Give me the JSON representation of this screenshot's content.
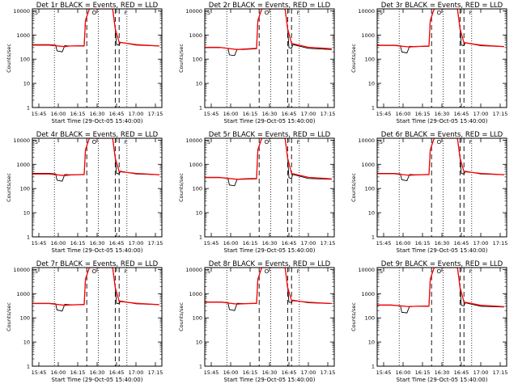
{
  "figure": {
    "start_time_label": "Start Time (29-Oct-05 15:40:00)",
    "legend_symbols": [
      "S",
      "A",
      "S",
      "O",
      "S",
      "E",
      "F",
      "F"
    ]
  },
  "colors": {
    "events": "#000000",
    "lld": "#ff0000",
    "background": "#ffffff"
  },
  "chart_data": [
    {
      "type": "line",
      "title": "Det 1r BLACK = Events, RED = LLD",
      "ylabel": "Counts/sec",
      "xlabel": "Start Time (29-Oct-05 15:40:00)",
      "yscale": "log",
      "ylim": [
        1,
        12000
      ],
      "xlim": [
        "15:40",
        "17:20"
      ],
      "x_tick_labels": [
        "15:45",
        "16:00",
        "16:15",
        "16:30",
        "16:45",
        "17:00",
        "17:15"
      ],
      "y_tick_labels": [
        "1",
        "10",
        "100",
        "1000",
        "10000"
      ],
      "dotted_lines": [
        "15:57",
        "16:31",
        "16:53"
      ],
      "dashed_lines": [
        "16:22",
        "16:44",
        "16:47"
      ],
      "series": [
        {
          "name": "BLACK = Events",
          "x": [
            "15:40",
            "15:51",
            "15:53",
            "15:58",
            "15:59",
            "16:03",
            "16:05",
            "16:09",
            "16:20",
            "16:21",
            "16:24",
            "16:42",
            "16:44",
            "16:45",
            "16:47",
            "16:48",
            "17:00",
            "17:18"
          ],
          "y": [
            400,
            400,
            400,
            380,
            220,
            200,
            360,
            350,
            350,
            4000,
            12000,
            12000,
            1800,
            400,
            380,
            500,
            380,
            350
          ]
        },
        {
          "name": "RED = LLD",
          "x": [
            "15:40",
            "15:51",
            "15:53",
            "16:05",
            "16:09",
            "16:20",
            "16:21",
            "16:24",
            "16:42",
            "16:44",
            "16:47",
            "17:00",
            "17:18"
          ],
          "y": [
            380,
            380,
            380,
            330,
            350,
            360,
            4000,
            12000,
            12000,
            1800,
            500,
            400,
            350
          ]
        }
      ]
    },
    {
      "type": "line",
      "title": "Det 2r BLACK = Events, RED = LLD",
      "ylabel": "Counts/sec",
      "xlabel": "Start Time (29-Oct-05 15:40:00)",
      "yscale": "log",
      "ylim": [
        1,
        12000
      ],
      "xlim": [
        "15:40",
        "17:20"
      ],
      "x_tick_labels": [
        "15:45",
        "16:00",
        "16:15",
        "16:30",
        "16:45",
        "17:00",
        "17:15"
      ],
      "y_tick_labels": [
        "1",
        "10",
        "100",
        "1000",
        "10000"
      ],
      "dotted_lines": [
        "15:57",
        "16:31",
        "16:53"
      ],
      "dashed_lines": [
        "16:22",
        "16:44",
        "16:47"
      ],
      "series": [
        {
          "name": "BLACK = Events",
          "x": [
            "15:40",
            "15:51",
            "15:53",
            "15:58",
            "15:59",
            "16:03",
            "16:05",
            "16:09",
            "16:20",
            "16:21",
            "16:24",
            "16:42",
            "16:44",
            "16:45",
            "16:47",
            "16:48",
            "17:00",
            "17:18"
          ],
          "y": [
            300,
            300,
            300,
            280,
            150,
            140,
            260,
            250,
            270,
            4000,
            12000,
            12000,
            1800,
            300,
            280,
            400,
            280,
            250
          ]
        },
        {
          "name": "RED = LLD",
          "x": [
            "15:40",
            "15:51",
            "15:53",
            "16:05",
            "16:09",
            "16:20",
            "16:21",
            "16:24",
            "16:42",
            "16:44",
            "16:47",
            "17:00",
            "17:18"
          ],
          "y": [
            310,
            310,
            300,
            250,
            260,
            280,
            4000,
            12000,
            12000,
            1800,
            450,
            310,
            270
          ]
        }
      ]
    },
    {
      "type": "line",
      "title": "Det 3r BLACK = Events, RED = LLD",
      "ylabel": "Counts/sec",
      "xlabel": "Start Time (29-Oct-05 15:40:00)",
      "yscale": "log",
      "ylim": [
        1,
        12000
      ],
      "xlim": [
        "15:40",
        "17:20"
      ],
      "x_tick_labels": [
        "15:45",
        "16:00",
        "16:15",
        "16:30",
        "16:45",
        "17:00",
        "17:15"
      ],
      "y_tick_labels": [
        "1",
        "10",
        "100",
        "1000",
        "10000"
      ],
      "dotted_lines": [
        "15:57",
        "16:31",
        "16:53"
      ],
      "dashed_lines": [
        "16:22",
        "16:44",
        "16:47"
      ],
      "series": [
        {
          "name": "BLACK = Events",
          "x": [
            "15:40",
            "15:51",
            "15:53",
            "15:58",
            "15:59",
            "16:03",
            "16:05",
            "16:09",
            "16:20",
            "16:21",
            "16:24",
            "16:42",
            "16:44",
            "16:45",
            "16:47",
            "16:48",
            "17:00",
            "17:18"
          ],
          "y": [
            380,
            380,
            380,
            360,
            200,
            180,
            340,
            330,
            340,
            4000,
            12000,
            12000,
            1800,
            380,
            360,
            480,
            360,
            330
          ]
        },
        {
          "name": "RED = LLD",
          "x": [
            "15:40",
            "15:51",
            "15:53",
            "16:05",
            "16:09",
            "16:20",
            "16:21",
            "16:24",
            "16:42",
            "16:44",
            "16:47",
            "17:00",
            "17:18"
          ],
          "y": [
            370,
            370,
            370,
            320,
            330,
            350,
            4000,
            12000,
            12000,
            1800,
            480,
            380,
            330
          ]
        }
      ]
    },
    {
      "type": "line",
      "title": "Det 4r BLACK = Events, RED = LLD",
      "ylabel": "Counts/sec",
      "xlabel": "Start Time (29-Oct-05 15:40:00)",
      "yscale": "log",
      "ylim": [
        1,
        12000
      ],
      "xlim": [
        "15:40",
        "17:20"
      ],
      "x_tick_labels": [
        "15:45",
        "16:00",
        "16:15",
        "16:30",
        "16:45",
        "17:00",
        "17:15"
      ],
      "y_tick_labels": [
        "1",
        "10",
        "100",
        "1000",
        "10000"
      ],
      "dotted_lines": [
        "15:57",
        "16:31",
        "16:53"
      ],
      "dashed_lines": [
        "16:22",
        "16:44",
        "16:47"
      ],
      "series": [
        {
          "name": "BLACK = Events",
          "x": [
            "15:40",
            "15:51",
            "15:53",
            "15:58",
            "15:59",
            "16:03",
            "16:05",
            "16:09",
            "16:20",
            "16:21",
            "16:24",
            "16:42",
            "16:44",
            "16:45",
            "16:47",
            "16:48",
            "17:00",
            "17:18"
          ],
          "y": [
            420,
            420,
            420,
            400,
            220,
            200,
            380,
            370,
            370,
            4000,
            12000,
            12000,
            1800,
            420,
            400,
            520,
            400,
            370
          ]
        },
        {
          "name": "RED = LLD",
          "x": [
            "15:40",
            "15:51",
            "15:53",
            "16:05",
            "16:09",
            "16:20",
            "16:21",
            "16:24",
            "16:42",
            "16:44",
            "16:47",
            "17:00",
            "17:18"
          ],
          "y": [
            400,
            400,
            400,
            340,
            360,
            380,
            4000,
            12000,
            12000,
            1800,
            500,
            420,
            370
          ]
        }
      ]
    },
    {
      "type": "line",
      "title": "Det 5r BLACK = Events, RED = LLD",
      "ylabel": "Counts/sec",
      "xlabel": "Start Time (29-Oct-05 15:40:00)",
      "yscale": "log",
      "ylim": [
        1,
        12000
      ],
      "xlim": [
        "15:40",
        "17:20"
      ],
      "x_tick_labels": [
        "15:45",
        "16:00",
        "16:15",
        "16:30",
        "16:45",
        "17:00",
        "17:15"
      ],
      "y_tick_labels": [
        "1",
        "10",
        "100",
        "1000",
        "10000"
      ],
      "dotted_lines": [
        "15:57",
        "16:31",
        "16:53"
      ],
      "dashed_lines": [
        "16:22",
        "16:44",
        "16:47"
      ],
      "series": [
        {
          "name": "BLACK = Events",
          "x": [
            "15:40",
            "15:51",
            "15:53",
            "15:58",
            "15:59",
            "16:03",
            "16:05",
            "16:09",
            "16:20",
            "16:21",
            "16:24",
            "16:42",
            "16:44",
            "16:45",
            "16:47",
            "16:48",
            "17:00",
            "17:18"
          ],
          "y": [
            280,
            280,
            280,
            260,
            140,
            130,
            240,
            240,
            250,
            4000,
            12000,
            12000,
            1800,
            280,
            260,
            380,
            260,
            240
          ]
        },
        {
          "name": "RED = LLD",
          "x": [
            "15:40",
            "15:51",
            "15:53",
            "16:05",
            "16:09",
            "16:20",
            "16:21",
            "16:24",
            "16:42",
            "16:44",
            "16:47",
            "17:00",
            "17:18"
          ],
          "y": [
            290,
            290,
            280,
            240,
            250,
            260,
            4000,
            12000,
            12000,
            1800,
            420,
            290,
            250
          ]
        }
      ]
    },
    {
      "type": "line",
      "title": "Det 6r BLACK = Events, RED = LLD",
      "ylabel": "Counts/sec",
      "xlabel": "Start Time (29-Oct-05 15:40:00)",
      "yscale": "log",
      "ylim": [
        1,
        12000
      ],
      "xlim": [
        "15:40",
        "17:20"
      ],
      "x_tick_labels": [
        "15:45",
        "16:00",
        "16:15",
        "16:30",
        "16:45",
        "17:00",
        "17:15"
      ],
      "y_tick_labels": [
        "1",
        "10",
        "100",
        "1000",
        "10000"
      ],
      "dotted_lines": [
        "15:57",
        "16:31",
        "16:53"
      ],
      "dashed_lines": [
        "16:22",
        "16:44",
        "16:47"
      ],
      "series": [
        {
          "name": "BLACK = Events",
          "x": [
            "15:40",
            "15:51",
            "15:53",
            "15:58",
            "15:59",
            "16:03",
            "16:05",
            "16:09",
            "16:20",
            "16:21",
            "16:24",
            "16:42",
            "16:44",
            "16:45",
            "16:47",
            "16:48",
            "17:00",
            "17:18"
          ],
          "y": [
            420,
            420,
            420,
            400,
            230,
            210,
            380,
            370,
            370,
            4000,
            12000,
            12000,
            1800,
            420,
            400,
            520,
            400,
            370
          ]
        },
        {
          "name": "RED = LLD",
          "x": [
            "15:40",
            "15:51",
            "15:53",
            "16:05",
            "16:09",
            "16:20",
            "16:21",
            "16:24",
            "16:42",
            "16:44",
            "16:47",
            "17:00",
            "17:18"
          ],
          "y": [
            410,
            410,
            410,
            350,
            360,
            380,
            4000,
            12000,
            12000,
            1800,
            500,
            420,
            370
          ]
        }
      ]
    },
    {
      "type": "line",
      "title": "Det 7r BLACK = Events, RED = LLD",
      "ylabel": "Counts/sec",
      "xlabel": "Start Time (29-Oct-05 15:40:00)",
      "yscale": "log",
      "ylim": [
        1,
        12000
      ],
      "xlim": [
        "15:40",
        "17:20"
      ],
      "x_tick_labels": [
        "15:45",
        "16:00",
        "16:15",
        "16:30",
        "16:45",
        "17:00",
        "17:15"
      ],
      "y_tick_labels": [
        "1",
        "10",
        "100",
        "1000",
        "10000"
      ],
      "dotted_lines": [
        "15:57",
        "16:31",
        "16:53"
      ],
      "dashed_lines": [
        "16:22",
        "16:44",
        "16:47"
      ],
      "series": [
        {
          "name": "BLACK = Events",
          "x": [
            "15:40",
            "15:51",
            "15:53",
            "15:58",
            "15:59",
            "16:03",
            "16:05",
            "16:09",
            "16:20",
            "16:21",
            "16:24",
            "16:42",
            "16:44",
            "16:45",
            "16:47",
            "16:48",
            "17:00",
            "17:18"
          ],
          "y": [
            400,
            400,
            400,
            380,
            210,
            190,
            360,
            350,
            350,
            4000,
            12000,
            12000,
            1800,
            400,
            380,
            500,
            380,
            350
          ]
        },
        {
          "name": "RED = LLD",
          "x": [
            "15:40",
            "15:51",
            "15:53",
            "16:05",
            "16:09",
            "16:20",
            "16:21",
            "16:24",
            "16:42",
            "16:44",
            "16:47",
            "17:00",
            "17:18"
          ],
          "y": [
            390,
            390,
            390,
            330,
            340,
            360,
            4000,
            12000,
            12000,
            1800,
            480,
            400,
            350
          ]
        }
      ]
    },
    {
      "type": "line",
      "title": "Det 8r BLACK = Events, RED = LLD",
      "ylabel": "Counts/sec",
      "xlabel": "Start Time (29-Oct-05 15:40:00)",
      "yscale": "log",
      "ylim": [
        1,
        12000
      ],
      "xlim": [
        "15:40",
        "17:20"
      ],
      "x_tick_labels": [
        "15:45",
        "16:00",
        "16:15",
        "16:30",
        "16:45",
        "17:00",
        "17:15"
      ],
      "y_tick_labels": [
        "1",
        "10",
        "100",
        "1000",
        "10000"
      ],
      "dotted_lines": [
        "15:57",
        "16:31",
        "16:53"
      ],
      "dashed_lines": [
        "16:22",
        "16:44",
        "16:47"
      ],
      "series": [
        {
          "name": "BLACK = Events",
          "x": [
            "15:40",
            "15:51",
            "15:53",
            "15:58",
            "15:59",
            "16:03",
            "16:05",
            "16:09",
            "16:20",
            "16:21",
            "16:24",
            "16:42",
            "16:44",
            "16:45",
            "16:47",
            "16:48",
            "17:00",
            "17:18"
          ],
          "y": [
            450,
            450,
            450,
            420,
            220,
            200,
            400,
            390,
            390,
            4000,
            12000,
            12000,
            1800,
            450,
            420,
            540,
            420,
            390
          ]
        },
        {
          "name": "RED = LLD",
          "x": [
            "15:40",
            "15:51",
            "15:53",
            "16:05",
            "16:09",
            "16:20",
            "16:21",
            "16:24",
            "16:42",
            "16:44",
            "16:47",
            "17:00",
            "17:18"
          ],
          "y": [
            440,
            440,
            440,
            370,
            380,
            400,
            4000,
            12000,
            12000,
            1800,
            520,
            440,
            390
          ]
        }
      ]
    },
    {
      "type": "line",
      "title": "Det 9r BLACK = Events, RED = LLD",
      "ylabel": "Counts/sec",
      "xlabel": "Start Time (29-Oct-05 15:40:00)",
      "yscale": "log",
      "ylim": [
        1,
        12000
      ],
      "xlim": [
        "15:40",
        "17:20"
      ],
      "x_tick_labels": [
        "15:45",
        "16:00",
        "16:15",
        "16:30",
        "16:45",
        "17:00",
        "17:15"
      ],
      "y_tick_labels": [
        "1",
        "10",
        "100",
        "1000",
        "10000"
      ],
      "dotted_lines": [
        "15:57",
        "16:31",
        "16:53"
      ],
      "dashed_lines": [
        "16:22",
        "16:44",
        "16:47"
      ],
      "series": [
        {
          "name": "BLACK = Events",
          "x": [
            "15:40",
            "15:51",
            "15:53",
            "15:58",
            "15:59",
            "16:03",
            "16:05",
            "16:09",
            "16:20",
            "16:21",
            "16:24",
            "16:42",
            "16:44",
            "16:45",
            "16:47",
            "16:48",
            "17:00",
            "17:18"
          ],
          "y": [
            330,
            330,
            330,
            310,
            170,
            160,
            300,
            300,
            300,
            4000,
            12000,
            12000,
            1800,
            330,
            310,
            420,
            300,
            280
          ]
        },
        {
          "name": "RED = LLD",
          "x": [
            "15:40",
            "15:51",
            "15:53",
            "16:05",
            "16:09",
            "16:20",
            "16:21",
            "16:24",
            "16:42",
            "16:44",
            "16:47",
            "17:00",
            "17:18"
          ],
          "y": [
            340,
            340,
            330,
            290,
            300,
            310,
            4000,
            12000,
            12000,
            1800,
            450,
            330,
            290
          ]
        }
      ]
    }
  ]
}
